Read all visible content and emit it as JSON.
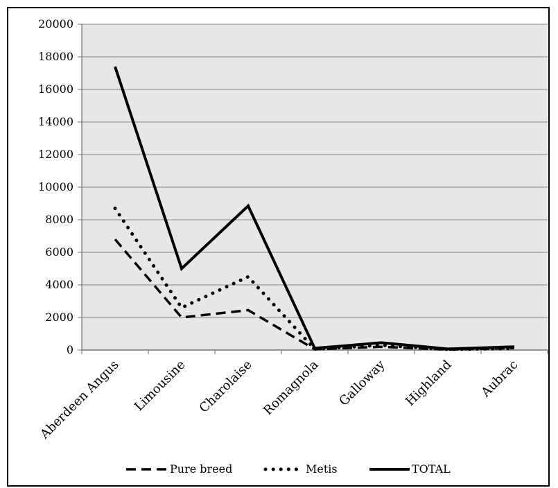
{
  "chart_data": {
    "type": "line",
    "categories": [
      "Aberdeen Angus",
      "Limousine",
      "Charolaise",
      "Romagnola",
      "Galloway",
      "Highland",
      "Aubrac"
    ],
    "series": [
      {
        "name": "Pure breed",
        "values": [
          6800,
          2000,
          2450,
          50,
          200,
          30,
          120
        ],
        "color": "#000000",
        "style": "dashed"
      },
      {
        "name": "Metis",
        "values": [
          8700,
          2600,
          4500,
          60,
          300,
          40,
          100
        ],
        "color": "#000000",
        "style": "dotted"
      },
      {
        "name": "TOTAL",
        "values": [
          17400,
          5000,
          8850,
          110,
          450,
          70,
          200
        ],
        "color": "#000000",
        "style": "solid"
      }
    ],
    "yticks": [
      0,
      2000,
      4000,
      6000,
      8000,
      10000,
      12000,
      14000,
      16000,
      18000,
      20000
    ],
    "ylim": [
      0,
      20000
    ],
    "grid": true,
    "plot_background": "#e7e7e7",
    "legend_position": "bottom"
  }
}
